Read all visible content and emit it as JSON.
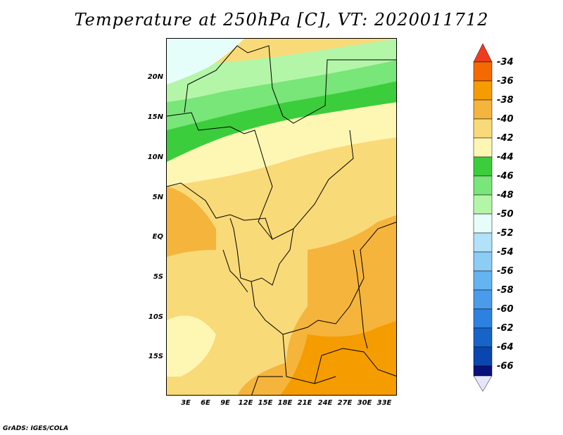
{
  "title": "Temperature at 250hPa [C], VT: 2020011712",
  "footer": "GrADS: IGES/COLA",
  "map": {
    "lat_labels": [
      "20N",
      "15N",
      "10N",
      "5N",
      "EQ",
      "5S",
      "10S",
      "15S"
    ],
    "lon_labels": [
      "3E",
      "6E",
      "9E",
      "12E",
      "15E",
      "18E",
      "21E",
      "24E",
      "27E",
      "30E",
      "33E"
    ]
  },
  "legend": {
    "labels": [
      "-34",
      "-36",
      "-38",
      "-40",
      "-42",
      "-44",
      "-46",
      "-48",
      "-50",
      "-52",
      "-54",
      "-56",
      "-58",
      "-60",
      "-62",
      "-64",
      "-66"
    ],
    "colors": {
      "above_-34": "#f03c1e",
      "-36_-34": "#f56a00",
      "-38_-36": "#f59c00",
      "-40_-38": "#f5b43c",
      "-42_-40": "#f9da78",
      "-44_-42": "#fef7b4",
      "-46_-44": "#3ccd3c",
      "-48_-46": "#78e678",
      "-50_-48": "#b4f6a8",
      "-52_-50": "#e6fefa",
      "-54_-52": "#b2e1fa",
      "-56_-54": "#8ccdf5",
      "-58_-56": "#63b4f0",
      "-60_-58": "#4b9beb",
      "-62_-60": "#2d82e1",
      "-64_-62": "#1664c8",
      "-66_-64": "#0a46af",
      "below_-66": "#08107a",
      "below_-66_cap": "#e6e6fa"
    }
  }
}
